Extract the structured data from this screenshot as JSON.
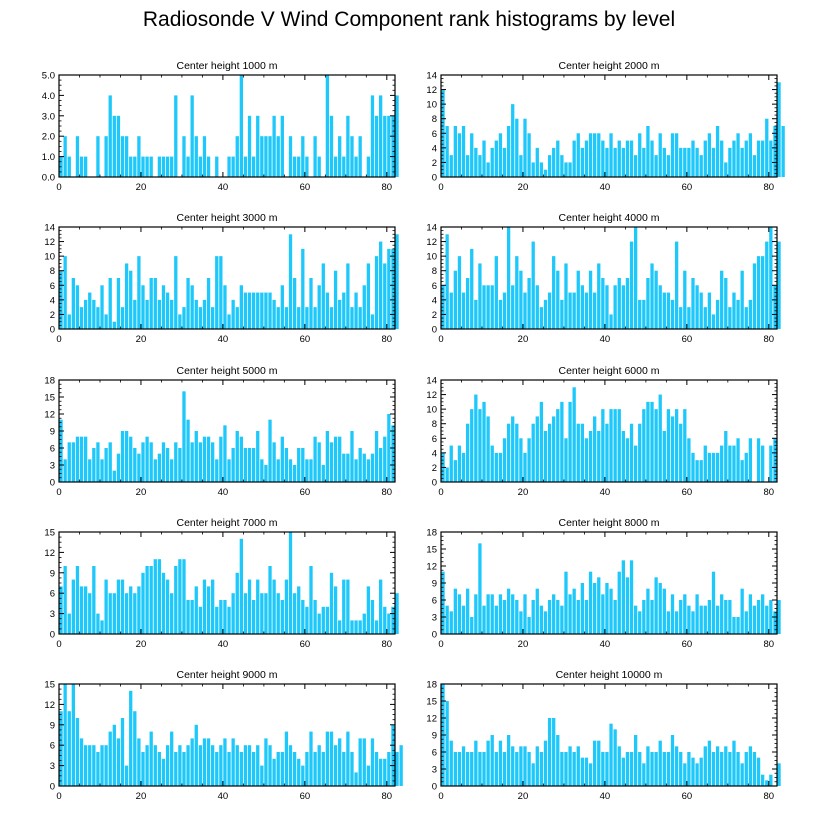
{
  "figure_title": "Radiosonde V Wind Component rank histograms by level",
  "colors": {
    "bar": "#1EC8FA",
    "axis": "#000000",
    "background": "#FFFFFF"
  },
  "chart_data": [
    {
      "type": "bar",
      "title": "Center height 1000 m",
      "xlim": [
        0,
        82
      ],
      "ylim": [
        0,
        5
      ],
      "xticks": [
        0,
        20,
        40,
        60,
        80
      ],
      "yticks": [
        0,
        1,
        2,
        3,
        4,
        5
      ],
      "ytick_labels": [
        "0.0",
        "1.0",
        "2.0",
        "3.0",
        "4.0",
        "5.0"
      ],
      "values": [
        1,
        2,
        1,
        0,
        2,
        1,
        1,
        0,
        0,
        2,
        0,
        2,
        4,
        3,
        3,
        2,
        2,
        1,
        1,
        2,
        1,
        1,
        1,
        0,
        1,
        1,
        1,
        1,
        4,
        0,
        2,
        1,
        4,
        2,
        1,
        2,
        1,
        0,
        1,
        0,
        0,
        1,
        1,
        2,
        5,
        1,
        3,
        1,
        3,
        2,
        2,
        2,
        3,
        2,
        3,
        0,
        2,
        1,
        1,
        2,
        1,
        0,
        2,
        1,
        0,
        5,
        3,
        1,
        2,
        1,
        3,
        2,
        1,
        2,
        0,
        1,
        4,
        3,
        4,
        3,
        3,
        3,
        4
      ]
    },
    {
      "type": "bar",
      "title": "Center height 2000 m",
      "xlim": [
        0,
        82
      ],
      "ylim": [
        0,
        14
      ],
      "xticks": [
        0,
        20,
        40,
        60,
        80
      ],
      "yticks": [
        0,
        2,
        4,
        6,
        8,
        10,
        12,
        14
      ],
      "ytick_labels": [
        "0",
        "2",
        "4",
        "6",
        "8",
        "10",
        "12",
        "14"
      ],
      "values": [
        12,
        7,
        3,
        7,
        6,
        7,
        3,
        6,
        4,
        3,
        5,
        2,
        4,
        5,
        6,
        4,
        7,
        10,
        8,
        3,
        8,
        6,
        2,
        4,
        2,
        1,
        3,
        4,
        5,
        3,
        2,
        2,
        5,
        6,
        4,
        5,
        6,
        6,
        6,
        5,
        4,
        6,
        4,
        5,
        4,
        5,
        5,
        3,
        6,
        4,
        7,
        5,
        3,
        6,
        4,
        3,
        6,
        6,
        4,
        4,
        4,
        5,
        4,
        3,
        5,
        6,
        4,
        7,
        5,
        2,
        4,
        5,
        6,
        4,
        5,
        6,
        3,
        5,
        5,
        8,
        5,
        7,
        13,
        7
      ]
    },
    {
      "type": "bar",
      "title": "Center height 3000 m",
      "xlim": [
        0,
        82
      ],
      "ylim": [
        0,
        14
      ],
      "xticks": [
        0,
        20,
        40,
        60,
        80
      ],
      "yticks": [
        0,
        2,
        4,
        6,
        8,
        10,
        12,
        14
      ],
      "ytick_labels": [
        "0",
        "2",
        "4",
        "6",
        "8",
        "10",
        "12",
        "14"
      ],
      "values": [
        8,
        10,
        2,
        7,
        6,
        3,
        4,
        5,
        4,
        3,
        6,
        2,
        7,
        1,
        7,
        3,
        9,
        8,
        4,
        10,
        6,
        4,
        7,
        7,
        4,
        6,
        5,
        4,
        10,
        2,
        3,
        7,
        6,
        4,
        3,
        4,
        7,
        3,
        10,
        10,
        6,
        2,
        4,
        3,
        6,
        5,
        5,
        5,
        5,
        5,
        5,
        5,
        4,
        3,
        6,
        3,
        13,
        7,
        3,
        11,
        3,
        7,
        3,
        6,
        9,
        5,
        3,
        8,
        4,
        5,
        9,
        3,
        5,
        3,
        6,
        9,
        2,
        10,
        12,
        9,
        11,
        11,
        13
      ]
    },
    {
      "type": "bar",
      "title": "Center height 4000 m",
      "xlim": [
        0,
        82
      ],
      "ylim": [
        0,
        14
      ],
      "xticks": [
        0,
        20,
        40,
        60,
        80
      ],
      "yticks": [
        0,
        2,
        4,
        6,
        8,
        10,
        12,
        14
      ],
      "ytick_labels": [
        "0",
        "2",
        "4",
        "6",
        "8",
        "10",
        "12",
        "14"
      ],
      "values": [
        6,
        13,
        5,
        8,
        10,
        5,
        7,
        11,
        4,
        9,
        6,
        6,
        6,
        10,
        4,
        5,
        14,
        6,
        10,
        8,
        5,
        7,
        12,
        6,
        3,
        4,
        5,
        10,
        8,
        4,
        9,
        5,
        5,
        8,
        6,
        5,
        8,
        5,
        9,
        7,
        6,
        2,
        6,
        7,
        6,
        7,
        12,
        14,
        4,
        4,
        7,
        9,
        8,
        6,
        5,
        5,
        4,
        12,
        3,
        8,
        3,
        7,
        6,
        5,
        3,
        5,
        2,
        4,
        8,
        7,
        3,
        5,
        4,
        8,
        3,
        4,
        9,
        10,
        10,
        12,
        14,
        6,
        12
      ]
    },
    {
      "type": "bar",
      "title": "Center height 5000 m",
      "xlim": [
        0,
        82
      ],
      "ylim": [
        0,
        18
      ],
      "xticks": [
        0,
        20,
        40,
        60,
        80
      ],
      "yticks": [
        0,
        3,
        6,
        9,
        12,
        15,
        18
      ],
      "ytick_labels": [
        "0",
        "3",
        "6",
        "9",
        "12",
        "15",
        "18"
      ],
      "values": [
        11,
        4,
        7,
        7,
        8,
        8,
        8,
        4,
        6,
        7,
        4,
        6,
        7,
        2,
        5,
        9,
        9,
        8,
        6,
        5,
        7,
        8,
        7,
        4,
        5,
        7,
        6,
        4,
        7,
        6,
        16,
        11,
        7,
        9,
        7,
        8,
        8,
        7,
        4,
        8,
        10,
        4,
        6,
        9,
        8,
        6,
        6,
        6,
        9,
        4,
        3,
        11,
        7,
        4,
        8,
        6,
        4,
        3,
        6,
        6,
        4,
        4,
        8,
        7,
        3,
        9,
        7,
        8,
        8,
        5,
        5,
        9,
        4,
        6,
        5,
        4,
        5,
        9,
        6,
        8,
        12,
        10
      ]
    },
    {
      "type": "bar",
      "title": "Center height 6000 m",
      "xlim": [
        0,
        82
      ],
      "ylim": [
        0,
        14
      ],
      "xticks": [
        0,
        20,
        40,
        60,
        80
      ],
      "yticks": [
        0,
        2,
        4,
        6,
        8,
        10,
        12,
        14
      ],
      "ytick_labels": [
        "0",
        "2",
        "4",
        "6",
        "8",
        "10",
        "12",
        "14"
      ],
      "values": [
        4,
        2,
        5,
        3,
        5,
        4,
        8,
        10,
        12,
        10,
        11,
        9,
        5,
        4,
        4,
        6,
        8,
        9,
        8,
        6,
        4,
        6,
        8,
        9,
        11,
        7,
        8,
        9,
        10,
        11,
        6,
        11,
        13,
        8,
        8,
        6,
        7,
        9,
        7,
        10,
        8,
        10,
        10,
        10,
        7,
        6,
        8,
        5,
        8,
        10,
        11,
        11,
        10,
        12,
        7,
        10,
        9,
        10,
        8,
        10,
        6,
        4,
        3,
        3,
        5,
        4,
        4,
        4,
        5,
        7,
        5,
        5,
        6,
        3,
        4,
        6,
        0,
        6,
        5,
        0,
        5,
        6
      ]
    },
    {
      "type": "bar",
      "title": "Center height 7000 m",
      "xlim": [
        0,
        82
      ],
      "ylim": [
        0,
        15
      ],
      "xticks": [
        0,
        20,
        40,
        60,
        80
      ],
      "yticks": [
        0,
        3,
        6,
        9,
        12,
        15
      ],
      "ytick_labels": [
        "0",
        "3",
        "6",
        "9",
        "12",
        "15"
      ],
      "values": [
        7,
        10,
        3,
        8,
        10,
        7,
        7,
        6,
        10,
        3,
        2,
        8,
        6,
        6,
        8,
        8,
        6,
        7,
        6,
        7,
        9,
        10,
        10,
        11,
        11,
        9,
        8,
        6,
        10,
        11,
        11,
        5,
        5,
        7,
        4,
        8,
        7,
        8,
        4,
        5,
        5,
        4,
        6,
        9,
        14,
        6,
        8,
        5,
        8,
        6,
        6,
        10,
        8,
        6,
        5,
        8,
        15,
        6,
        7,
        5,
        4,
        10,
        5,
        3,
        4,
        4,
        9,
        7,
        2,
        8,
        8,
        2,
        2,
        2,
        3,
        7,
        5,
        2,
        8,
        4,
        3,
        4,
        6
      ]
    },
    {
      "type": "bar",
      "title": "Center height 8000 m",
      "xlim": [
        0,
        82
      ],
      "ylim": [
        0,
        18
      ],
      "xticks": [
        0,
        20,
        40,
        60,
        80
      ],
      "yticks": [
        0,
        3,
        6,
        9,
        12,
        15,
        18
      ],
      "ytick_labels": [
        "0",
        "3",
        "6",
        "9",
        "12",
        "15",
        "18"
      ],
      "values": [
        11,
        5,
        4,
        8,
        7,
        5,
        8,
        3,
        7,
        16,
        5,
        7,
        7,
        5,
        7,
        6,
        8,
        7,
        6,
        4,
        7,
        3,
        6,
        8,
        5,
        4,
        6,
        7,
        6,
        5,
        11,
        7,
        8,
        6,
        9,
        6,
        11,
        9,
        10,
        7,
        9,
        8,
        6,
        11,
        13,
        10,
        13,
        5,
        4,
        6,
        8,
        6,
        10,
        9,
        8,
        4,
        7,
        4,
        6,
        7,
        5,
        4,
        7,
        5,
        5,
        6,
        11,
        5,
        7,
        6,
        6,
        3,
        3,
        8,
        4,
        7,
        5,
        6,
        7,
        5,
        6,
        4,
        6
      ]
    },
    {
      "type": "bar",
      "title": "Center height 9000 m",
      "xlim": [
        0,
        82
      ],
      "ylim": [
        0,
        15
      ],
      "xticks": [
        0,
        20,
        40,
        60,
        80
      ],
      "yticks": [
        0,
        3,
        6,
        9,
        12,
        15
      ],
      "ytick_labels": [
        "0",
        "3",
        "6",
        "9",
        "12",
        "15"
      ],
      "values": [
        11,
        15,
        11,
        15,
        10,
        7,
        6,
        6,
        6,
        5,
        6,
        6,
        8,
        9,
        7,
        10,
        3,
        14,
        11,
        7,
        5,
        6,
        8,
        6,
        5,
        4,
        6,
        8,
        5,
        6,
        5,
        6,
        7,
        9,
        6,
        7,
        7,
        6,
        5,
        6,
        7,
        5,
        7,
        6,
        5,
        6,
        6,
        5,
        6,
        3,
        7,
        6,
        4,
        5,
        5,
        8,
        6,
        5,
        4,
        3,
        5,
        8,
        5,
        6,
        5,
        8,
        8,
        6,
        7,
        5,
        8,
        5,
        2,
        7,
        7,
        3,
        7,
        5,
        4,
        4,
        5,
        9,
        5,
        6
      ]
    },
    {
      "type": "bar",
      "title": "Center height 10000 m",
      "xlim": [
        0,
        82
      ],
      "ylim": [
        0,
        18
      ],
      "xticks": [
        0,
        20,
        40,
        60,
        80
      ],
      "yticks": [
        0,
        3,
        6,
        9,
        12,
        15,
        18
      ],
      "ytick_labels": [
        "0",
        "3",
        "6",
        "9",
        "12",
        "15",
        "18"
      ],
      "values": [
        18,
        15,
        8,
        6,
        6,
        7,
        6,
        6,
        8,
        6,
        6,
        8,
        9,
        6,
        8,
        6,
        9,
        7,
        6,
        7,
        7,
        6,
        4,
        7,
        6,
        8,
        12,
        12,
        9,
        6,
        6,
        7,
        6,
        7,
        5,
        5,
        4,
        8,
        8,
        6,
        6,
        11,
        10,
        7,
        5,
        6,
        6,
        9,
        6,
        4,
        7,
        6,
        6,
        8,
        6,
        6,
        9,
        7,
        6,
        4,
        6,
        5,
        4,
        5,
        7,
        8,
        6,
        7,
        6,
        7,
        6,
        8,
        6,
        4,
        6,
        7,
        6,
        5,
        2,
        1,
        2,
        0,
        4
      ]
    }
  ]
}
